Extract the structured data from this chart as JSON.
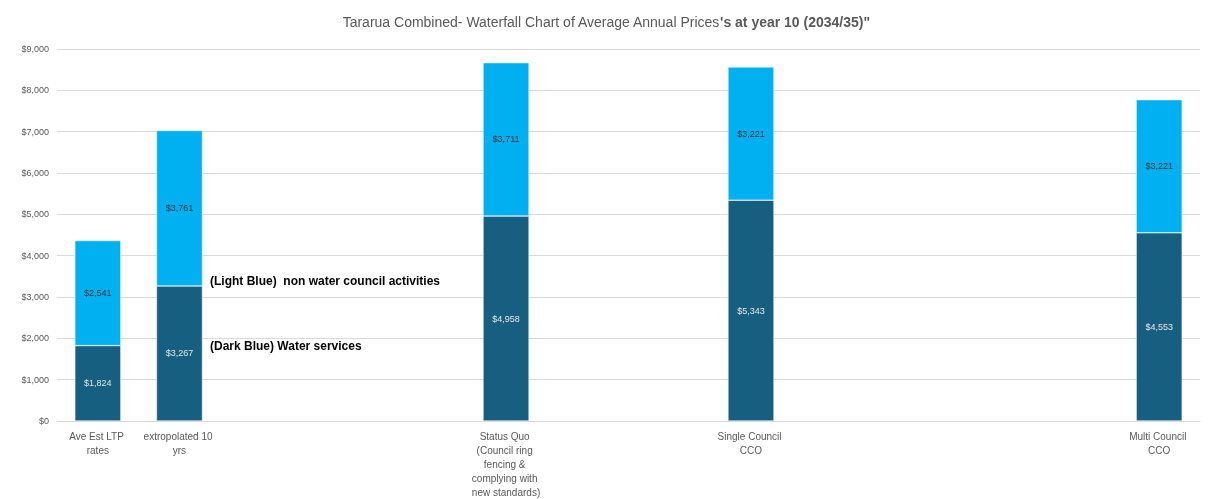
{
  "chart_data": {
    "type": "bar",
    "title": "Tararua Combined- Waterfall Chart of Average Annual Prices",
    "subtitle": "'s at year 10 (2034/35)\"",
    "categories": [
      "Ave Est LTP rates",
      "extropolated 10 yrs",
      null,
      null,
      null,
      "Status Quo (Council ring fencing & complying with new standards)",
      null,
      null,
      "Single Council CCO",
      null,
      null,
      null,
      null,
      "Multi Council CCO"
    ],
    "stacked": true,
    "series": [
      {
        "color": "#175f80",
        "values": [
          1824,
          3267,
          null,
          null,
          null,
          4958,
          null,
          null,
          5343,
          null,
          null,
          null,
          null,
          4553
        ],
        "value_labels": [
          "$1,824",
          "$3,267",
          null,
          null,
          null,
          "$4,958",
          null,
          null,
          "$5,343",
          null,
          null,
          null,
          null,
          "$4,553"
        ]
      },
      {
        "color": "#00b0f0",
        "values": [
          2541,
          3761,
          null,
          null,
          null,
          3711,
          null,
          null,
          3221,
          null,
          null,
          null,
          null,
          3221
        ],
        "value_labels": [
          "$2,541",
          "$3,761",
          null,
          null,
          null,
          "$3,711",
          null,
          null,
          "$3,221",
          null,
          null,
          null,
          null,
          "$3,221"
        ]
      }
    ],
    "ylim": [
      0,
      9000
    ],
    "yticks": [
      {
        "value": 0,
        "label": "$0"
      },
      {
        "value": 1000,
        "label": "$1,000"
      },
      {
        "value": 2000,
        "label": "$2,000"
      },
      {
        "value": 3000,
        "label": "$3,000"
      },
      {
        "value": 4000,
        "label": "$4,000"
      },
      {
        "value": 5000,
        "label": "$5,000"
      },
      {
        "value": 6000,
        "label": "$6,000"
      },
      {
        "value": 7000,
        "label": "$7,000"
      },
      {
        "value": 8000,
        "label": "$8,000"
      },
      {
        "value": 9000,
        "label": "$9,000"
      }
    ],
    "grid": "y",
    "annotations": [
      "(Light Blue)  non water council activities",
      "(Dark Blue) Water services"
    ]
  }
}
